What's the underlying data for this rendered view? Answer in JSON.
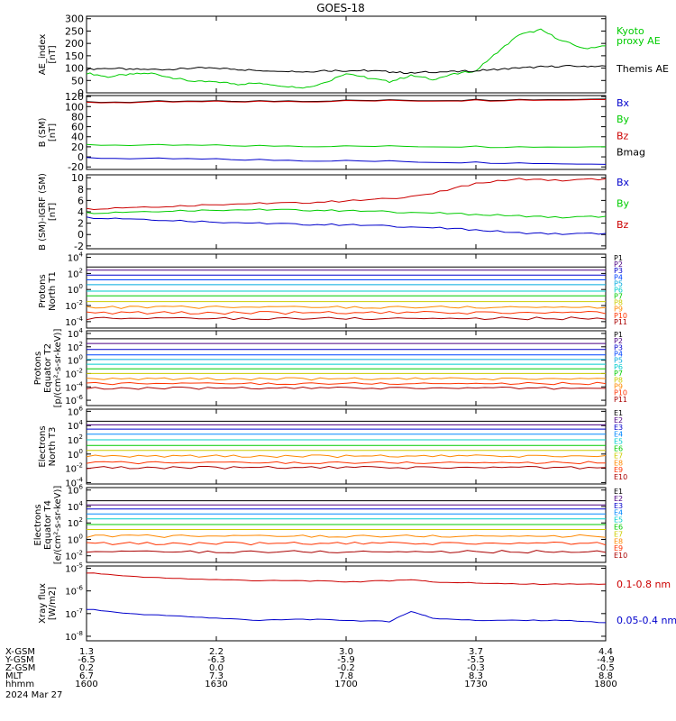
{
  "title": "GOES-18",
  "x_axis": {
    "row_labels": [
      "X-GSM",
      "Y-GSM",
      "Z-GSM",
      "MLT",
      "hhmm"
    ],
    "date": "2024 Mar 27",
    "columns": [
      [
        "1.3",
        "-6.5",
        "0.2",
        "6.7",
        "1600"
      ],
      [
        "2.2",
        "-6.3",
        "0.0",
        "7.3",
        "1630"
      ],
      [
        "3.0",
        "-5.9",
        "-0.2",
        "7.8",
        "1700"
      ],
      [
        "3.7",
        "-5.5",
        "-0.3",
        "8.3",
        "1730"
      ],
      [
        "4.4",
        "-4.9",
        "-0.5",
        "8.8",
        "1800"
      ]
    ],
    "time_range_hhmm": [
      "1600",
      "1800"
    ]
  },
  "chart_data": [
    {
      "type": "line",
      "ylabel": [
        "AE_index",
        "[nT]"
      ],
      "ylim": [
        0,
        310
      ],
      "yticks": [
        "0",
        "50",
        "100",
        "150",
        "200",
        "250",
        "300"
      ],
      "legend": [
        {
          "text": "Kyoto",
          "color": "#00cc00"
        },
        {
          "text": "proxy AE",
          "color": "#00cc00"
        },
        {
          "text": "Themis AE",
          "color": "#000000"
        }
      ],
      "x": [
        0,
        5,
        10,
        15,
        20,
        25,
        30,
        35,
        40,
        45,
        50,
        55,
        60,
        65,
        70,
        75,
        80,
        85,
        90,
        95,
        100,
        105,
        110,
        115,
        120
      ],
      "series": [
        {
          "name": "Kyoto proxy AE",
          "color": "#00cc00",
          "values": [
            80,
            65,
            75,
            80,
            60,
            45,
            45,
            35,
            40,
            30,
            20,
            40,
            80,
            60,
            45,
            70,
            55,
            75,
            90,
            165,
            235,
            255,
            210,
            180,
            190
          ]
        },
        {
          "name": "Themis AE",
          "color": "#000000",
          "values": [
            95,
            100,
            95,
            95,
            95,
            100,
            100,
            95,
            90,
            90,
            85,
            90,
            90,
            90,
            85,
            80,
            85,
            85,
            90,
            95,
            100,
            105,
            108,
            108,
            108
          ]
        }
      ]
    },
    {
      "type": "line",
      "ylabel": [
        "B (SM)",
        "[nT]"
      ],
      "ylim": [
        -25,
        122
      ],
      "yticks": [
        "-20",
        "0",
        "20",
        "40",
        "60",
        "80",
        "100",
        "120"
      ],
      "legend": [
        {
          "text": "Bx",
          "color": "#0000cc"
        },
        {
          "text": "By",
          "color": "#00cc00"
        },
        {
          "text": "Bz",
          "color": "#cc0000"
        },
        {
          "text": "Bmag",
          "color": "#000000"
        }
      ],
      "x": [
        0,
        20,
        40,
        60,
        80,
        100,
        120
      ],
      "series": [
        {
          "name": "Bmag",
          "color": "#000000",
          "values": [
            109,
            110,
            111,
            112,
            113,
            114,
            115
          ]
        },
        {
          "name": "Bz",
          "color": "#cc0000",
          "values": [
            108,
            109,
            110,
            111,
            112,
            113,
            114
          ]
        },
        {
          "name": "By",
          "color": "#00cc00",
          "values": [
            24,
            23,
            22,
            21,
            21,
            20,
            20
          ]
        },
        {
          "name": "Bx",
          "color": "#0000cc",
          "values": [
            -2,
            -4,
            -6,
            -8,
            -10,
            -12,
            -15
          ]
        }
      ]
    },
    {
      "type": "line",
      "ylabel": [
        "B (SM)-IGRF (SM)",
        "[nT]"
      ],
      "ylim": [
        -2.5,
        10.5
      ],
      "yticks": [
        "-2",
        "0",
        "2",
        "4",
        "6",
        "8",
        "10"
      ],
      "legend": [
        {
          "text": "Bx",
          "color": "#0000cc"
        },
        {
          "text": "By",
          "color": "#00cc00"
        },
        {
          "text": "Bz",
          "color": "#cc0000"
        }
      ],
      "x": [
        0,
        10,
        20,
        30,
        40,
        50,
        60,
        70,
        80,
        90,
        100,
        110,
        120
      ],
      "series": [
        {
          "name": "Bz",
          "color": "#cc0000",
          "values": [
            4.5,
            4.8,
            5.0,
            5.3,
            5.5,
            5.6,
            5.9,
            6.3,
            7.2,
            9.0,
            9.8,
            9.5,
            9.8
          ]
        },
        {
          "name": "By",
          "color": "#00cc00",
          "values": [
            3.8,
            4.0,
            4.2,
            4.3,
            4.4,
            4.3,
            4.2,
            4.0,
            3.8,
            3.5,
            3.3,
            3.0,
            3.2
          ]
        },
        {
          "name": "Bx",
          "color": "#0000cc",
          "values": [
            3.0,
            2.8,
            2.5,
            2.2,
            2.0,
            1.8,
            1.7,
            1.5,
            1.2,
            0.8,
            0.3,
            0.1,
            0.2
          ]
        }
      ]
    },
    {
      "type": "line",
      "ylabel": [
        "Protons",
        "North T1"
      ],
      "log": true,
      "ylim_exp": [
        -4.8,
        4.4
      ],
      "yticks_exp": [
        4,
        2,
        0,
        -2,
        -4
      ],
      "channels": [
        {
          "name": "P1",
          "color": "#000000",
          "exp": 2.8
        },
        {
          "name": "P2",
          "color": "#4b0082",
          "exp": 2.4
        },
        {
          "name": "P3",
          "color": "#0000cc",
          "exp": 1.8
        },
        {
          "name": "P4",
          "color": "#0044ff",
          "exp": 1.2
        },
        {
          "name": "P5",
          "color": "#00aadd",
          "exp": 0.6
        },
        {
          "name": "P6",
          "color": "#00cccc",
          "exp": -0.2
        },
        {
          "name": "P7",
          "color": "#00cc00",
          "exp": -0.8
        },
        {
          "name": "P8",
          "color": "#cccc00",
          "exp": -1.5
        },
        {
          "name": "P9",
          "color": "#ff8800",
          "exp": -2.2
        },
        {
          "name": "P10",
          "color": "#ff3300",
          "exp": -2.9
        },
        {
          "name": "P11",
          "color": "#aa0000",
          "exp": -3.6
        }
      ]
    },
    {
      "type": "line",
      "ylabel": [
        "Protons",
        "Equator T2",
        "[p/(cm²-s-sr-keV)]"
      ],
      "log": true,
      "ylim_exp": [
        -6.8,
        4.4
      ],
      "yticks_exp": [
        4,
        2,
        0,
        -2,
        -4,
        -6
      ],
      "channels": [
        {
          "name": "P1",
          "color": "#000000",
          "exp": 3.2
        },
        {
          "name": "P2",
          "color": "#4b0082",
          "exp": 2.5
        },
        {
          "name": "P3",
          "color": "#0000cc",
          "exp": 1.6
        },
        {
          "name": "P4",
          "color": "#0044ff",
          "exp": 0.8
        },
        {
          "name": "P5",
          "color": "#00aadd",
          "exp": 0.1
        },
        {
          "name": "P6",
          "color": "#00cccc",
          "exp": -0.6
        },
        {
          "name": "P7",
          "color": "#00cc00",
          "exp": -1.3
        },
        {
          "name": "P8",
          "color": "#cccc00",
          "exp": -2.0
        },
        {
          "name": "P9",
          "color": "#ff8800",
          "exp": -2.8
        },
        {
          "name": "P10",
          "color": "#ff3300",
          "exp": -3.5
        },
        {
          "name": "P11",
          "color": "#aa0000",
          "exp": -4.2
        }
      ]
    },
    {
      "type": "line",
      "ylabel": [
        "Electrons",
        "North T3"
      ],
      "log": true,
      "ylim_exp": [
        -4.2,
        6.3
      ],
      "yticks_exp": [
        6,
        4,
        2,
        0,
        -2,
        -4
      ],
      "channels": [
        {
          "name": "E1",
          "color": "#000000",
          "exp": 4.6
        },
        {
          "name": "E2",
          "color": "#4b0082",
          "exp": 4.1
        },
        {
          "name": "E3",
          "color": "#0000cc",
          "exp": 3.5
        },
        {
          "name": "E4",
          "color": "#0088ff",
          "exp": 2.8
        },
        {
          "name": "E5",
          "color": "#00cccc",
          "exp": 2.0
        },
        {
          "name": "E6",
          "color": "#00cc00",
          "exp": 1.2
        },
        {
          "name": "E7",
          "color": "#cccc00",
          "exp": 0.5
        },
        {
          "name": "E8",
          "color": "#ff8800",
          "exp": -0.3
        },
        {
          "name": "E9",
          "color": "#ff3300",
          "exp": -1.2
        },
        {
          "name": "E10",
          "color": "#aa0000",
          "exp": -1.9
        }
      ]
    },
    {
      "type": "line",
      "ylabel": [
        "Electrons",
        "Equator T4",
        "[e/(cm²-s-sr-keV)]"
      ],
      "log": true,
      "ylim_exp": [
        -2.8,
        6.3
      ],
      "yticks_exp": [
        6,
        4,
        2,
        0,
        -2
      ],
      "channels": [
        {
          "name": "E1",
          "color": "#000000",
          "exp": 4.7
        },
        {
          "name": "E2",
          "color": "#4b0082",
          "exp": 4.2
        },
        {
          "name": "E3",
          "color": "#0000cc",
          "exp": 3.7
        },
        {
          "name": "E4",
          "color": "#0088ff",
          "exp": 3.1
        },
        {
          "name": "E5",
          "color": "#00cccc",
          "exp": 2.5
        },
        {
          "name": "E6",
          "color": "#00cc00",
          "exp": 1.8
        },
        {
          "name": "E7",
          "color": "#cccc00",
          "exp": 1.2
        },
        {
          "name": "E8",
          "color": "#ff8800",
          "exp": 0.4
        },
        {
          "name": "E9",
          "color": "#ff3300",
          "exp": -0.5
        },
        {
          "name": "E10",
          "color": "#aa0000",
          "exp": -1.5
        }
      ]
    },
    {
      "type": "line",
      "ylabel": [
        "Xray flux",
        "[W/m2]"
      ],
      "log": true,
      "ylim_exp": [
        -8.2,
        -4.9
      ],
      "yticks_exp": [
        -5,
        -6,
        -7,
        -8
      ],
      "legend": [
        {
          "text": "0.1-0.8 nm",
          "color": "#cc0000"
        },
        {
          "text": "0.05-0.4 nm",
          "color": "#0000cc"
        }
      ],
      "x": [
        0,
        10,
        20,
        30,
        40,
        50,
        60,
        70,
        75,
        80,
        90,
        100,
        110,
        120
      ],
      "series": [
        {
          "name": "0.1-0.8 nm",
          "color": "#cc0000",
          "exp": [
            -5.2,
            -5.35,
            -5.45,
            -5.5,
            -5.55,
            -5.55,
            -5.6,
            -5.55,
            -5.5,
            -5.6,
            -5.65,
            -5.7,
            -5.7,
            -5.7
          ]
        },
        {
          "name": "0.05-0.4 nm",
          "color": "#0000cc",
          "exp": [
            -6.8,
            -7.0,
            -7.1,
            -7.2,
            -7.3,
            -7.25,
            -7.3,
            -7.35,
            -6.9,
            -7.2,
            -7.3,
            -7.3,
            -7.3,
            -7.4
          ]
        }
      ]
    }
  ]
}
